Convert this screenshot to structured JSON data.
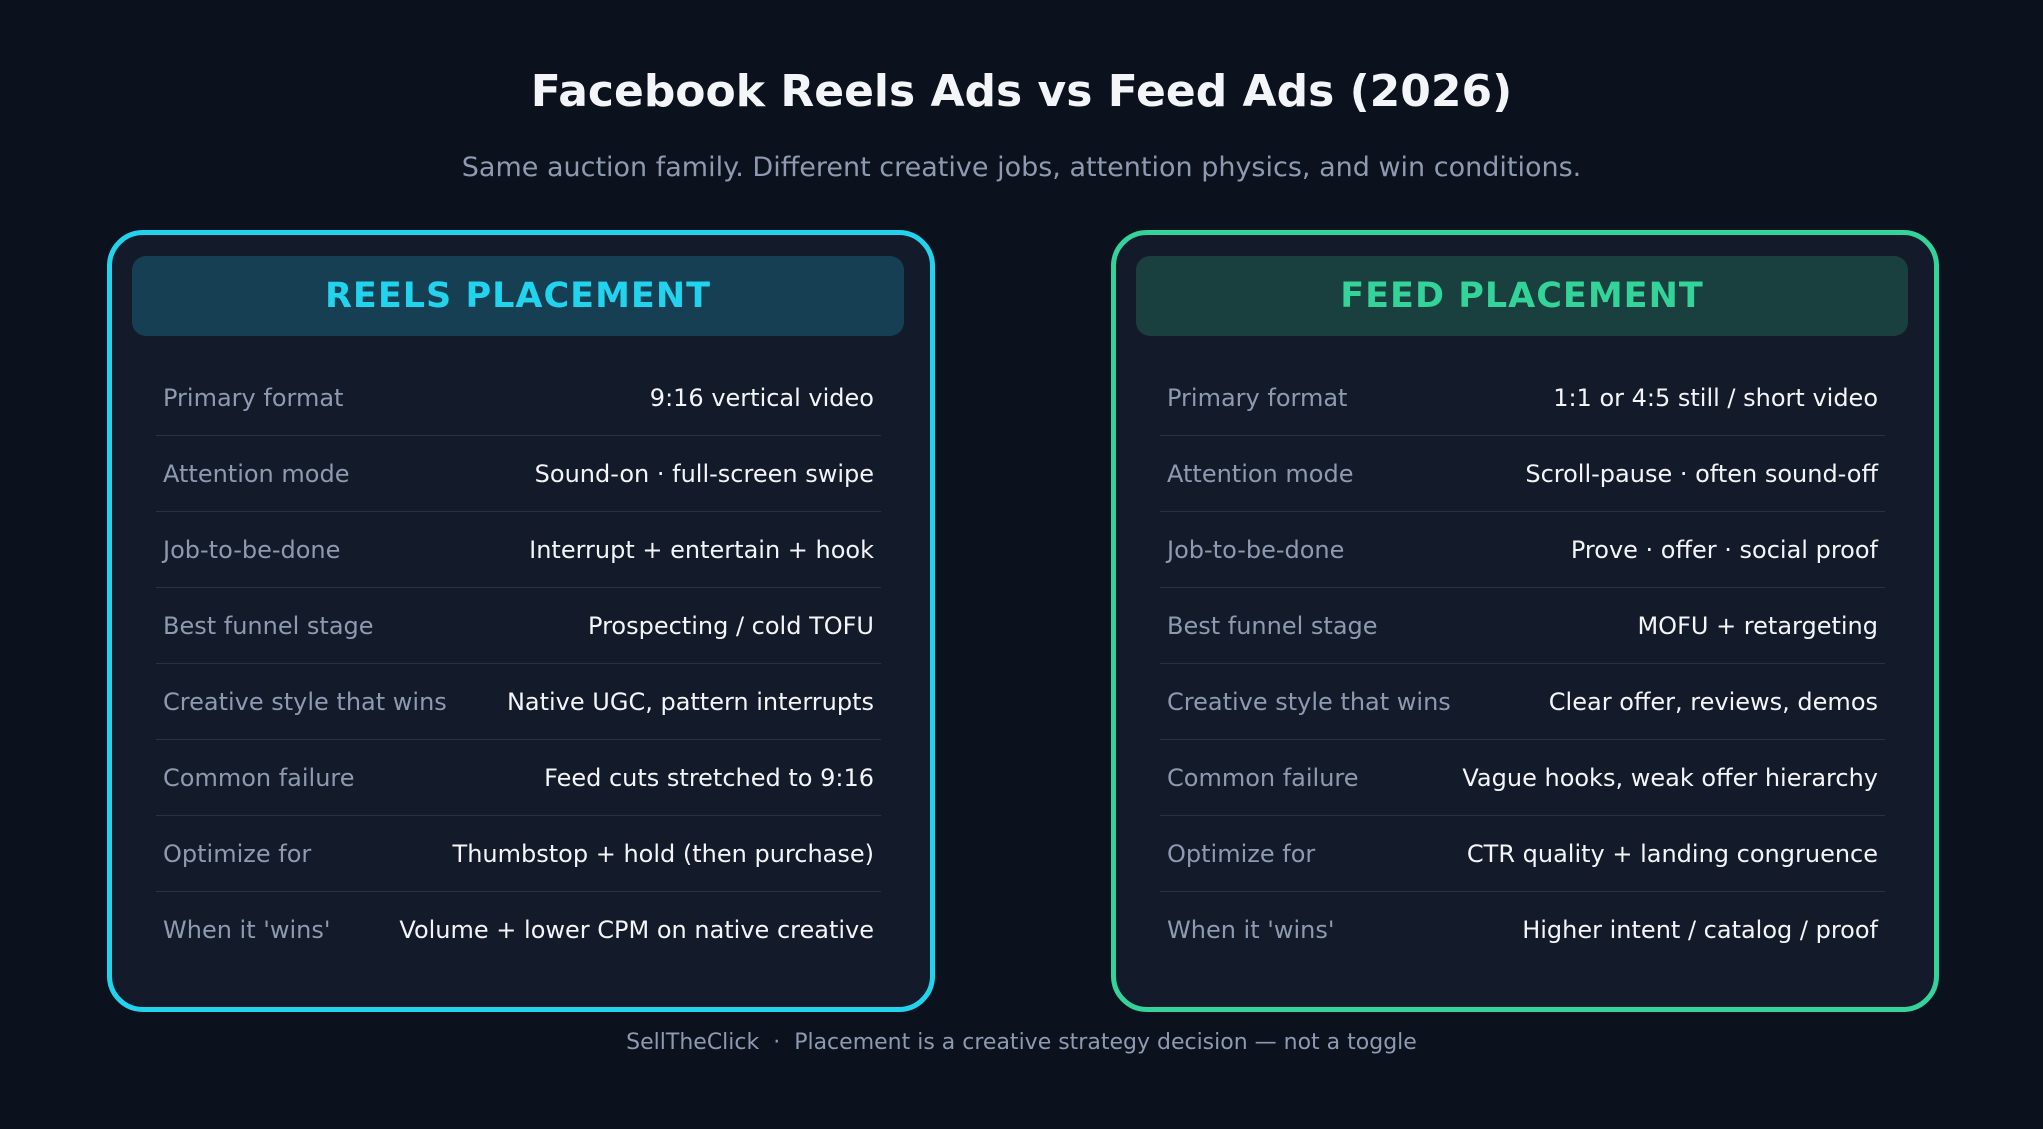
{
  "title": "Facebook Reels Ads vs Feed Ads (2026)",
  "subtitle": "Same auction family. Different creative jobs, attention physics, and win conditions.",
  "colors": {
    "background": "#0b111d",
    "reels_accent": "#22d3ee",
    "feed_accent": "#34d399"
  },
  "reels": {
    "header": "REELS PLACEMENT",
    "rows": [
      {
        "label": "Primary format",
        "value": "9:16 vertical video"
      },
      {
        "label": "Attention mode",
        "value": "Sound-on · full-screen swipe"
      },
      {
        "label": "Job-to-be-done",
        "value": "Interrupt + entertain + hook"
      },
      {
        "label": "Best funnel stage",
        "value": "Prospecting / cold TOFU"
      },
      {
        "label": "Creative style that wins",
        "value": "Native UGC, pattern interrupts"
      },
      {
        "label": "Common failure",
        "value": "Feed cuts stretched to 9:16"
      },
      {
        "label": "Optimize for",
        "value": "Thumbstop + hold (then purchase)"
      },
      {
        "label": "When it 'wins'",
        "value": "Volume + lower CPM on native creative"
      }
    ]
  },
  "feed": {
    "header": "FEED PLACEMENT",
    "rows": [
      {
        "label": "Primary format",
        "value": "1:1 or 4:5 still / short video"
      },
      {
        "label": "Attention mode",
        "value": "Scroll-pause · often sound-off"
      },
      {
        "label": "Job-to-be-done",
        "value": "Prove · offer · social proof"
      },
      {
        "label": "Best funnel stage",
        "value": "MOFU + retargeting"
      },
      {
        "label": "Creative style that wins",
        "value": "Clear offer, reviews, demos"
      },
      {
        "label": "Common failure",
        "value": "Vague hooks, weak offer hierarchy"
      },
      {
        "label": "Optimize for",
        "value": "CTR quality + landing congruence"
      },
      {
        "label": "When it 'wins'",
        "value": "Higher intent / catalog / proof"
      }
    ]
  },
  "footer": "SellTheClick  ·  Placement is a creative strategy decision — not a toggle"
}
